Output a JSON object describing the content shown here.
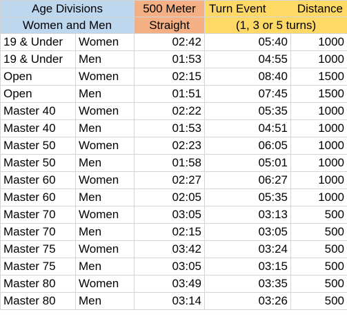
{
  "header": {
    "age_divisions_line1": "Age Divisions",
    "age_divisions_line2": "Women and Men",
    "straight_line1": "500 Meter",
    "straight_line2": "Straight",
    "turn_event_label": "Turn Event",
    "distance_label": "Distance",
    "turns_note": "(1, 3 or 5 turns)"
  },
  "colors": {
    "age_header_bg": "#bdd7ee",
    "straight_header_bg": "#f4b084",
    "turn_header_bg": "#ffd966",
    "gridline": "#d4d4d4"
  },
  "rows": [
    {
      "division": "19 & Under",
      "gender": "Women",
      "straight": "02:42",
      "turn": "05:40",
      "distance": "1000"
    },
    {
      "division": "19 & Under",
      "gender": "Men",
      "straight": "01:53",
      "turn": "04:55",
      "distance": "1000"
    },
    {
      "division": "Open",
      "gender": "Women",
      "straight": "02:15",
      "turn": "08:40",
      "distance": "1500"
    },
    {
      "division": "Open",
      "gender": "Men",
      "straight": "01:51",
      "turn": "07:45",
      "distance": "1500"
    },
    {
      "division": "Master 40",
      "gender": "Women",
      "straight": "02:22",
      "turn": "05:35",
      "distance": "1000"
    },
    {
      "division": "Master 40",
      "gender": "Men",
      "straight": "01:53",
      "turn": "04:51",
      "distance": "1000"
    },
    {
      "division": "Master 50",
      "gender": "Women",
      "straight": "02:23",
      "turn": "06:05",
      "distance": "1000"
    },
    {
      "division": "Master 50",
      "gender": "Men",
      "straight": "01:58",
      "turn": "05:01",
      "distance": "1000"
    },
    {
      "division": "Master 60",
      "gender": "Women",
      "straight": "02:27",
      "turn": "06:27",
      "distance": "1000"
    },
    {
      "division": "Master 60",
      "gender": "Men",
      "straight": "02:05",
      "turn": "05:35",
      "distance": "1000"
    },
    {
      "division": "Master 70",
      "gender": "Women",
      "straight": "03:05",
      "turn": "03:13",
      "distance": "500"
    },
    {
      "division": "Master 70",
      "gender": "Men",
      "straight": "02:15",
      "turn": "03:05",
      "distance": "500"
    },
    {
      "division": "Master 75",
      "gender": "Women",
      "straight": "03:42",
      "turn": "03:24",
      "distance": "500"
    },
    {
      "division": "Master 75",
      "gender": "Men",
      "straight": "03:05",
      "turn": "03:15",
      "distance": "500"
    },
    {
      "division": "Master 80",
      "gender": "Women",
      "straight": "03:49",
      "turn": "03:35",
      "distance": "500"
    },
    {
      "division": "Master 80",
      "gender": "Men",
      "straight": "03:14",
      "turn": "03:26",
      "distance": "500"
    }
  ]
}
